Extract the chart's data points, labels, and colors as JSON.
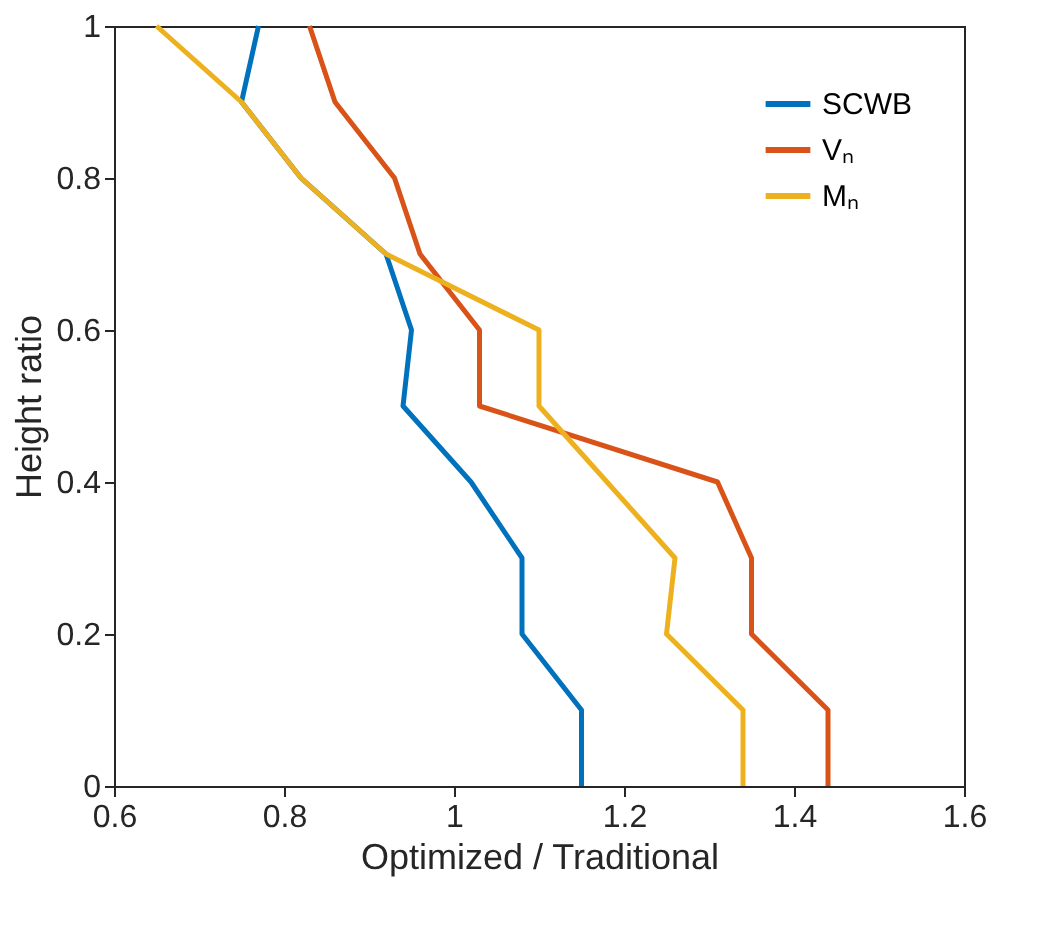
{
  "chart_data": {
    "type": "line",
    "xlabel": "Optimized / Traditional",
    "ylabel": "Height ratio",
    "xlim": [
      0.6,
      1.6
    ],
    "xticks": [
      0.6,
      0.8,
      1,
      1.2,
      1.4,
      1.6
    ],
    "ylim": [
      0,
      1
    ],
    "yticks": [
      0,
      0.2,
      0.4,
      0.6,
      0.8,
      1
    ],
    "grid": false,
    "legend": "top right",
    "marker": "none",
    "line_style": "solid",
    "series": [
      {
        "name": "SCWB",
        "color": "#0072bd",
        "x": [
          1.15,
          1.15,
          1.08,
          1.08,
          1.02,
          0.94,
          0.95,
          0.92,
          0.82,
          0.75,
          0.77
        ],
        "values": [
          0,
          0.1,
          0.2,
          0.3,
          0.4,
          0.5,
          0.6,
          0.7,
          0.8,
          0.9,
          1
        ]
      },
      {
        "name": "Vₙ",
        "color": "#d95319",
        "x": [
          1.44,
          1.44,
          1.35,
          1.35,
          1.31,
          1.03,
          1.03,
          0.96,
          0.93,
          0.86,
          0.83
        ],
        "values": [
          0,
          0.1,
          0.2,
          0.3,
          0.4,
          0.5,
          0.6,
          0.7,
          0.8,
          0.9,
          1
        ]
      },
      {
        "name": "Mₙ",
        "color": "#edb120",
        "x": [
          1.34,
          1.34,
          1.25,
          1.26,
          1.1,
          1.1,
          0.92,
          0.82,
          0.75,
          0.65
        ],
        "values": [
          0,
          0.1,
          0.2,
          0.3,
          0.5,
          0.6,
          0.7,
          0.8,
          0.9,
          1
        ]
      }
    ]
  }
}
